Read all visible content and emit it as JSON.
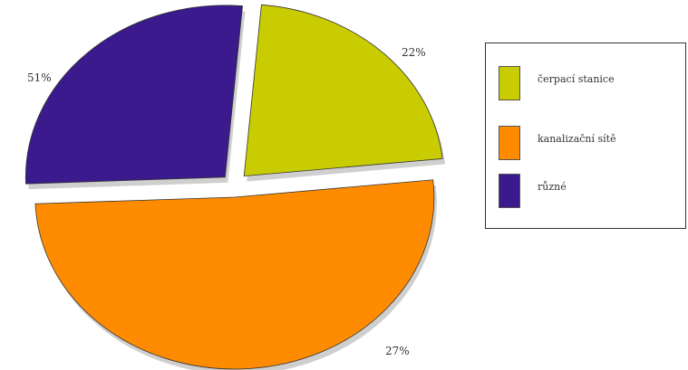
{
  "chart_data": {
    "type": "pie",
    "exploded": true,
    "slices": [
      {
        "label": "čerpací stanice",
        "value": 22,
        "value_label": "22%",
        "color": "#C8CC00"
      },
      {
        "label": "kanalizační sítě",
        "value": 51,
        "value_label": "51%",
        "color": "#FF8C00"
      },
      {
        "label": "různé",
        "value": 27,
        "value_label": "27%",
        "color": "#3A1A8C"
      }
    ],
    "legend": {
      "position": "right",
      "entries": [
        "čerpací stanice",
        "kanalizační sítě",
        "různé"
      ]
    }
  }
}
